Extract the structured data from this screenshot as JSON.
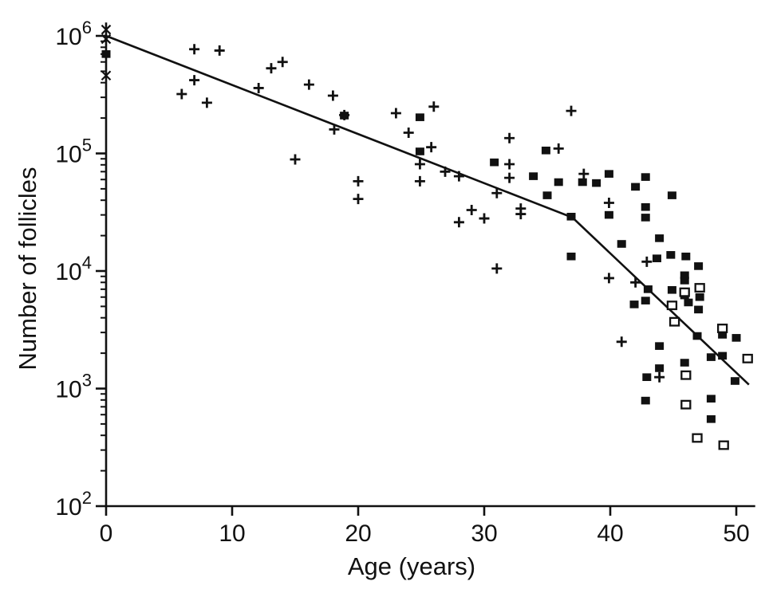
{
  "figure": {
    "background": "#ffffff",
    "foreground": "#111111"
  },
  "chart_data": {
    "type": "scatter",
    "title": "",
    "xlabel": "Age (years)",
    "ylabel": "Number of follicles",
    "grid": false,
    "legend": null,
    "x_axis": {
      "min": 0,
      "max": 51.5,
      "ticks": [
        0,
        10,
        20,
        30,
        40,
        50
      ]
    },
    "y_axis": {
      "scale": "log10",
      "min": 100,
      "max": 1300000,
      "tick_exponents": [
        2,
        3,
        4,
        5,
        6
      ],
      "tick_label_base": "10"
    },
    "series": [
      {
        "name": "plus-markers",
        "marker": "plus",
        "points": [
          [
            7.0,
            770000
          ],
          [
            9.0,
            750000
          ],
          [
            13.1,
            530000
          ],
          [
            14.0,
            600000
          ],
          [
            7.0,
            420000
          ],
          [
            6.0,
            320000
          ],
          [
            8.0,
            270000
          ],
          [
            12.1,
            360000
          ],
          [
            16.1,
            385000
          ],
          [
            18.0,
            310000
          ],
          [
            18.9,
            212000
          ],
          [
            18.1,
            160000
          ],
          [
            15.0,
            89000
          ],
          [
            20.0,
            58000
          ],
          [
            20.0,
            41000
          ],
          [
            23.0,
            220000
          ],
          [
            26.0,
            250000
          ],
          [
            24.0,
            150000
          ],
          [
            25.8,
            113000
          ],
          [
            24.9,
            81000
          ],
          [
            24.9,
            58000
          ],
          [
            26.9,
            70000
          ],
          [
            28.0,
            64000
          ],
          [
            29.0,
            33000
          ],
          [
            28.0,
            26000
          ],
          [
            30.0,
            28000
          ],
          [
            31.0,
            46000
          ],
          [
            32.0,
            135000
          ],
          [
            32.0,
            81000
          ],
          [
            32.0,
            62000
          ],
          [
            32.9,
            34000
          ],
          [
            32.9,
            30500
          ],
          [
            31.0,
            10500
          ],
          [
            36.9,
            230000
          ],
          [
            35.9,
            110000
          ],
          [
            37.9,
            67000
          ],
          [
            39.9,
            38000
          ],
          [
            39.9,
            8700
          ],
          [
            42.0,
            8000
          ],
          [
            42.9,
            12000
          ],
          [
            40.9,
            2500
          ],
          [
            43.9,
            1250
          ]
        ]
      },
      {
        "name": "filled-square-markers",
        "marker": "filled-square",
        "points": [
          [
            0,
            700000
          ],
          [
            18.9,
            210000
          ],
          [
            24.9,
            203000
          ],
          [
            24.9,
            104000
          ],
          [
            30.8,
            84000
          ],
          [
            33.9,
            64000
          ],
          [
            34.9,
            106000
          ],
          [
            35.9,
            57000
          ],
          [
            35.0,
            44000
          ],
          [
            37.8,
            57000
          ],
          [
            38.9,
            56000
          ],
          [
            39.9,
            67000
          ],
          [
            42.0,
            52000
          ],
          [
            42.8,
            63000
          ],
          [
            44.9,
            44000
          ],
          [
            36.9,
            29000
          ],
          [
            39.9,
            30000
          ],
          [
            42.8,
            35000
          ],
          [
            42.8,
            28500
          ],
          [
            40.9,
            17000
          ],
          [
            43.9,
            19000
          ],
          [
            36.9,
            13300
          ],
          [
            43.7,
            12800
          ],
          [
            44.8,
            13700
          ],
          [
            46.0,
            13300
          ],
          [
            47.0,
            11000
          ],
          [
            45.9,
            9200
          ],
          [
            43.0,
            7000
          ],
          [
            44.9,
            6900
          ],
          [
            45.9,
            8300
          ],
          [
            45.9,
            6200
          ],
          [
            46.2,
            5400
          ],
          [
            47.1,
            6000
          ],
          [
            47.0,
            4700
          ],
          [
            42.8,
            5600
          ],
          [
            41.9,
            5200
          ],
          [
            46.9,
            2800
          ],
          [
            48.9,
            2870
          ],
          [
            50.0,
            2700
          ],
          [
            43.9,
            2300
          ],
          [
            48.0,
            1850
          ],
          [
            48.9,
            1900
          ],
          [
            45.9,
            1660
          ],
          [
            43.9,
            1490
          ],
          [
            42.9,
            1250
          ],
          [
            49.9,
            1160
          ],
          [
            48.0,
            820
          ],
          [
            42.8,
            790
          ],
          [
            48.0,
            550
          ]
        ]
      },
      {
        "name": "open-square-markers",
        "marker": "open-square",
        "points": [
          [
            47.1,
            7200
          ],
          [
            45.9,
            6600
          ],
          [
            44.9,
            5100
          ],
          [
            45.1,
            3700
          ],
          [
            48.9,
            3250
          ],
          [
            50.9,
            1800
          ],
          [
            46.0,
            1300
          ],
          [
            46.0,
            730
          ],
          [
            46.9,
            380
          ],
          [
            49.0,
            330
          ]
        ]
      },
      {
        "name": "x-markers",
        "marker": "x",
        "points": [
          [
            0,
            1130000
          ],
          [
            0,
            940000
          ],
          [
            0,
            460000
          ]
        ]
      }
    ],
    "trend_line": {
      "name": "biphasic-fit-line",
      "points": [
        [
          0,
          1000000
        ],
        [
          37,
          28500
        ],
        [
          51,
          1080
        ]
      ]
    }
  }
}
